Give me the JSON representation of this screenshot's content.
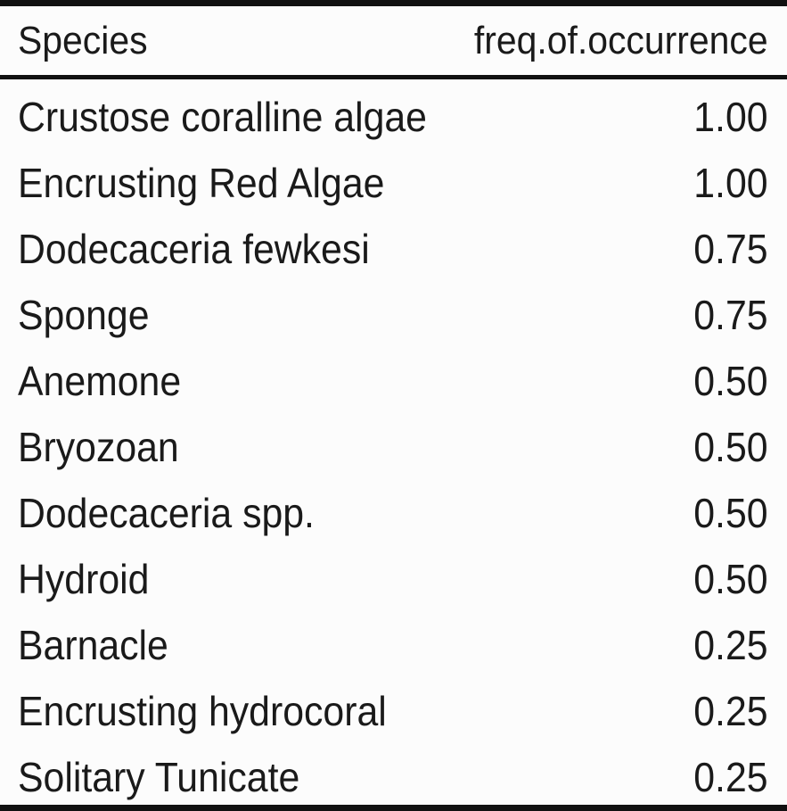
{
  "table": {
    "columns": [
      "Species",
      "freq.of.occurrence"
    ],
    "rows": [
      [
        "Crustose coralline algae",
        "1.00"
      ],
      [
        "Encrusting Red Algae",
        "1.00"
      ],
      [
        "Dodecaceria fewkesi",
        "0.75"
      ],
      [
        "Sponge",
        "0.75"
      ],
      [
        "Anemone",
        "0.50"
      ],
      [
        "Bryozoan",
        "0.50"
      ],
      [
        "Dodecaceria spp.",
        "0.50"
      ],
      [
        "Hydroid",
        "0.50"
      ],
      [
        "Barnacle",
        "0.25"
      ],
      [
        "Encrusting hydrocoral",
        "0.25"
      ],
      [
        "Solitary Tunicate",
        "0.25"
      ]
    ]
  }
}
